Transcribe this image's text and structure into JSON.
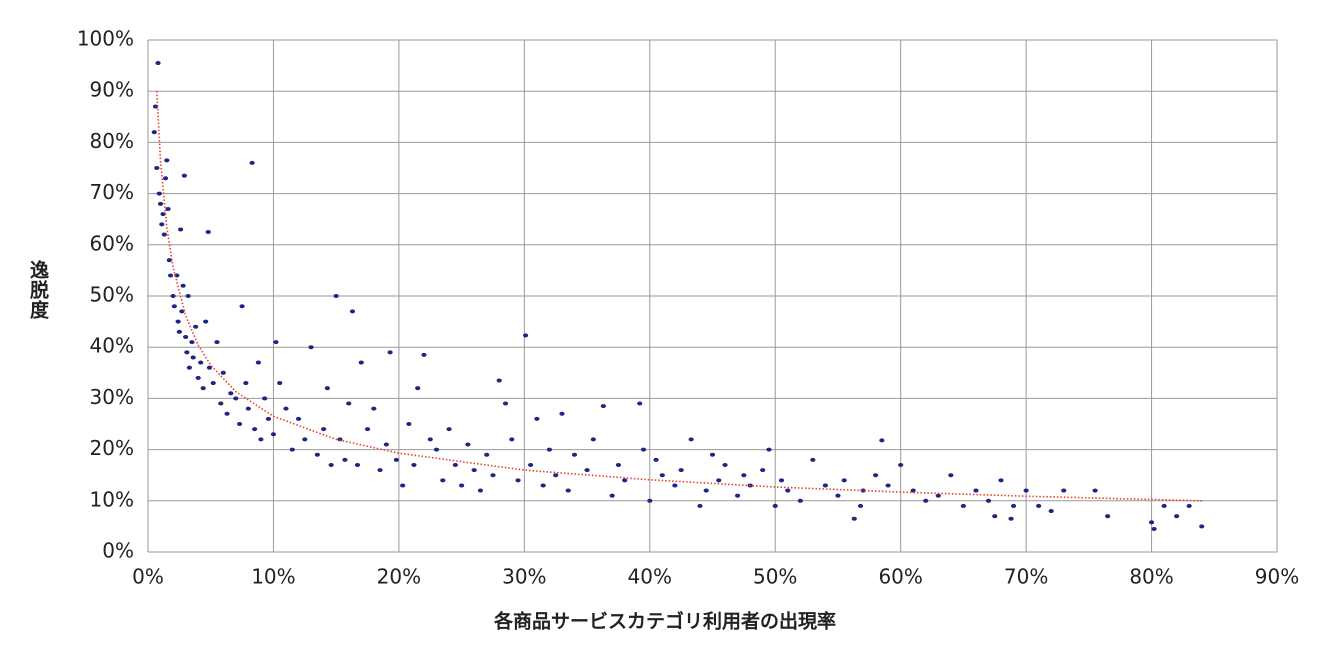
{
  "chart_data": {
    "type": "scatter",
    "xlabel": "各商品サービスカテゴリ利用者の出現率",
    "ylabel": "逸脱度",
    "color": "#1e2587",
    "x": [
      0.5,
      0.6,
      0.8,
      0.7,
      0.9,
      1.0,
      1.1,
      1.2,
      1.3,
      1.5,
      1.4,
      1.6,
      1.7,
      1.8,
      2.0,
      2.1,
      2.3,
      2.4,
      2.5,
      2.6,
      2.7,
      2.9,
      2.8,
      3.0,
      3.1,
      3.2,
      3.3,
      3.5,
      3.6,
      3.8,
      4.0,
      4.2,
      4.4,
      4.8,
      4.6,
      4.9,
      5.2,
      5.5,
      5.8,
      6.0,
      6.3,
      6.6,
      7.0,
      7.3,
      7.5,
      7.8,
      8.0,
      8.3,
      8.5,
      8.8,
      9.0,
      9.3,
      9.6,
      10.0,
      10.2,
      10.5,
      11,
      11.5,
      12,
      12.5,
      13,
      13.5,
      14,
      14.3,
      14.6,
      15,
      15.3,
      15.7,
      16,
      16.3,
      16.7,
      17,
      17.5,
      18,
      18.5,
      19,
      19.3,
      19.8,
      20.3,
      20.8,
      21.2,
      21.5,
      22,
      22.5,
      23,
      23.5,
      24,
      24.5,
      25,
      25.5,
      26,
      26.5,
      27,
      27.5,
      28,
      28.5,
      29,
      29.5,
      30.1,
      30.5,
      31,
      31.5,
      32,
      32.5,
      33,
      33.5,
      34,
      35,
      35.5,
      36.3,
      37,
      37.5,
      38,
      39.2,
      39.5,
      40,
      40.5,
      41,
      42,
      42.5,
      43.3,
      44,
      44.5,
      45,
      45.5,
      46,
      47,
      47.5,
      48,
      49,
      49.5,
      50,
      50.5,
      51,
      52,
      53,
      54,
      55,
      55.5,
      56.3,
      56.8,
      57,
      58,
      58.5,
      59,
      60,
      61,
      62,
      63,
      64,
      65,
      66,
      67,
      67.5,
      68,
      68.8,
      69,
      70,
      71,
      72,
      73,
      75.5,
      76.5,
      80,
      80.2,
      81,
      82,
      83,
      84
    ],
    "values": [
      82,
      87,
      95.5,
      75,
      70,
      68,
      64,
      66,
      62,
      76.5,
      73,
      67,
      57,
      54,
      50,
      48,
      54,
      45,
      43,
      63,
      47,
      73.5,
      52,
      42,
      39,
      50,
      36,
      41,
      38,
      44,
      34,
      37,
      32,
      62.5,
      45,
      36,
      33,
      41,
      29,
      35,
      27,
      31,
      30,
      25,
      48,
      33,
      28,
      76,
      24,
      37,
      22,
      30,
      26,
      23,
      41,
      33,
      28,
      20,
      26,
      22,
      40,
      19,
      24,
      32,
      17,
      50,
      22,
      18,
      29,
      47,
      17,
      37,
      24,
      28,
      16,
      21,
      39,
      18,
      13,
      25,
      17,
      32,
      38.5,
      22,
      20,
      14,
      24,
      17,
      13,
      21,
      16,
      12,
      19,
      15,
      33.5,
      29,
      22,
      14,
      42.3,
      17,
      26,
      13,
      20,
      15,
      27,
      12,
      19,
      16,
      22,
      28.5,
      11,
      17,
      14,
      29,
      20,
      10,
      18,
      15,
      13,
      16,
      22,
      9,
      12,
      19,
      14,
      17,
      11,
      15,
      13,
      16,
      20,
      9,
      14,
      12,
      10,
      18,
      13,
      11,
      14,
      6.5,
      9,
      12,
      15,
      21.8,
      13,
      17,
      12,
      10,
      11,
      15,
      9,
      12,
      10,
      7,
      14,
      6.5,
      9,
      12,
      9,
      8,
      12,
      12,
      7,
      5.8,
      4.5,
      9,
      7,
      9,
      5
    ],
    "trendline": {
      "color": "#e8402a",
      "x": [
        0.7,
        1,
        1.5,
        2,
        3,
        4,
        5,
        7,
        10,
        15,
        20,
        30,
        40,
        50,
        60,
        70,
        84
      ],
      "values": [
        90.0,
        76.4,
        63.4,
        55.6,
        46.2,
        40.4,
        36.5,
        31.3,
        26.5,
        22.0,
        19.3,
        16.0,
        14.1,
        12.7,
        11.7,
        10.9,
        10.0
      ]
    },
    "xlim": [
      0,
      90
    ],
    "ylim": [
      0,
      100
    ],
    "xticks": [
      {
        "value": 0,
        "label": "0%"
      },
      {
        "value": 10,
        "label": "10%"
      },
      {
        "value": 20,
        "label": "20%"
      },
      {
        "value": 30,
        "label": "30%"
      },
      {
        "value": 40,
        "label": "40%"
      },
      {
        "value": 50,
        "label": "50%"
      },
      {
        "value": 60,
        "label": "60%"
      },
      {
        "value": 70,
        "label": "70%"
      },
      {
        "value": 80,
        "label": "80%"
      },
      {
        "value": 90,
        "label": "90%"
      }
    ],
    "yticks": [
      {
        "value": 0,
        "label": "0%"
      },
      {
        "value": 10,
        "label": "10%"
      },
      {
        "value": 20,
        "label": "20%"
      },
      {
        "value": 30,
        "label": "30%"
      },
      {
        "value": 40,
        "label": "40%"
      },
      {
        "value": 50,
        "label": "50%"
      },
      {
        "value": 60,
        "label": "60%"
      },
      {
        "value": 70,
        "label": "70%"
      },
      {
        "value": 80,
        "label": "80%"
      },
      {
        "value": 90,
        "label": "90%"
      },
      {
        "value": 100,
        "label": "100%"
      }
    ],
    "grid": true
  }
}
